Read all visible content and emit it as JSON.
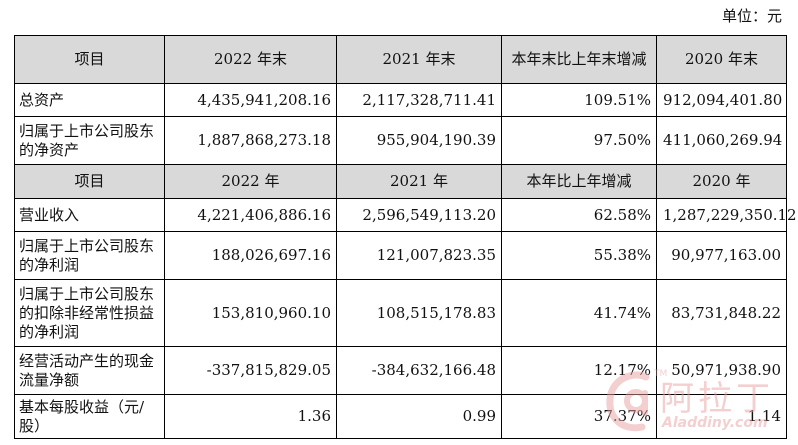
{
  "unit_label": "单位：元",
  "header1": [
    "项目",
    "2022 年末",
    "2021 年末",
    "本年末比上年末增减",
    "2020 年末"
  ],
  "rows1": [
    {
      "label": "总资产",
      "v2022": "4,435,941,208.16",
      "v2021": "2,117,328,711.41",
      "change": "109.51%",
      "v2020": "912,094,401.80"
    },
    {
      "label": "归属于上市公司股东的净资产",
      "v2022": "1,887,868,273.18",
      "v2021": "955,904,190.39",
      "change": "97.50%",
      "v2020": "411,060,269.94"
    }
  ],
  "header2": [
    "项目",
    "2022 年",
    "2021 年",
    "本年比上年增减",
    "2020 年"
  ],
  "rows2": [
    {
      "label": "营业收入",
      "v2022": "4,221,406,886.16",
      "v2021": "2,596,549,113.20",
      "change": "62.58%",
      "v2020": "1,287,229,350.12"
    },
    {
      "label": "归属于上市公司股东的净利润",
      "v2022": "188,026,697.16",
      "v2021": "121,007,823.35",
      "change": "55.38%",
      "v2020": "90,977,163.00"
    },
    {
      "label": "归属于上市公司股东的扣除非经常性损益的净利润",
      "v2022": "153,810,960.10",
      "v2021": "108,515,178.83",
      "change": "41.74%",
      "v2020": "83,731,848.22"
    },
    {
      "label": "经营活动产生的现金流量净额",
      "v2022": "-337,815,829.05",
      "v2021": "-384,632,166.48",
      "change": "12.17%",
      "v2020": "50,971,938.90"
    },
    {
      "label": "基本每股收益（元/股）",
      "v2022": "1.36",
      "v2021": "0.99",
      "change": "37.37%",
      "v2020": "1.14"
    }
  ],
  "watermark": {
    "name": "阿拉丁",
    "tm": "TM",
    "site": "Aladdiny.com",
    "color": "#e8a0a0"
  }
}
